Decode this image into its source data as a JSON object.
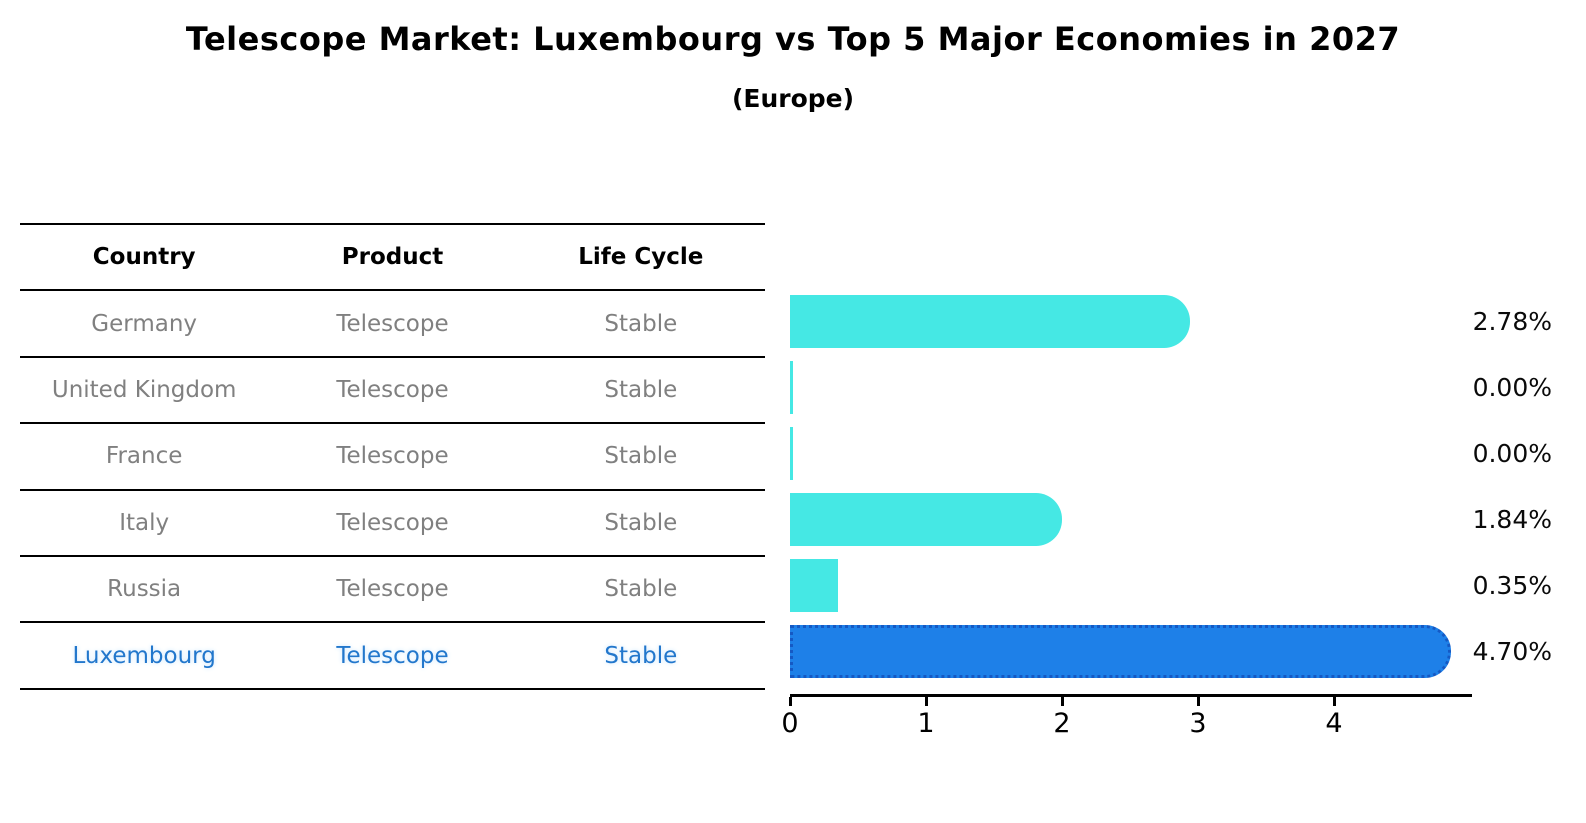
{
  "title": "Telescope Market: Luxembourg vs Top 5 Major Economies in 2027",
  "subtitle": "(Europe)",
  "table": {
    "headers": [
      "Country",
      "Product",
      "Life Cycle"
    ],
    "rows": [
      {
        "country": "Germany",
        "product": "Telescope",
        "life_cycle": "Stable",
        "highlight": false
      },
      {
        "country": "United Kingdom",
        "product": "Telescope",
        "life_cycle": "Stable",
        "highlight": false
      },
      {
        "country": "France",
        "product": "Telescope",
        "life_cycle": "Stable",
        "highlight": false
      },
      {
        "country": "Italy",
        "product": "Telescope",
        "life_cycle": "Stable",
        "highlight": false
      },
      {
        "country": "Russia",
        "product": "Telescope",
        "life_cycle": "Stable",
        "highlight": true
      }
    ],
    "highlight_row": {
      "country": "Luxembourg",
      "product": "Telescope",
      "life_cycle": "Stable"
    }
  },
  "chart_data": {
    "type": "bar",
    "orientation": "horizontal",
    "title": "Telescope Market: Luxembourg vs Top 5 Major Economies in 2027",
    "subtitle": "(Europe)",
    "categories": [
      "Germany",
      "United Kingdom",
      "France",
      "Italy",
      "Russia",
      "Luxembourg"
    ],
    "values": [
      2.78,
      0.0,
      0.0,
      1.84,
      0.35,
      4.7
    ],
    "value_labels": [
      "2.78%",
      "0.00%",
      "0.00%",
      "1.84%",
      "0.35%",
      "4.70%"
    ],
    "xlabel": "",
    "ylabel": "",
    "xlim": [
      0,
      5
    ],
    "x_ticks": [
      0,
      1,
      2,
      3,
      4
    ],
    "grid": false,
    "legend": false,
    "highlight_index": 5,
    "bar_color": "#45E8E4",
    "highlight_bar_color": "#1E80E8",
    "highlight_border_color": "#1559C4"
  },
  "colors": {
    "background": "#FFFFFF",
    "text": "#000000",
    "muted_text": "#808080",
    "highlight_text": "#2277CC",
    "line": "#000000"
  }
}
